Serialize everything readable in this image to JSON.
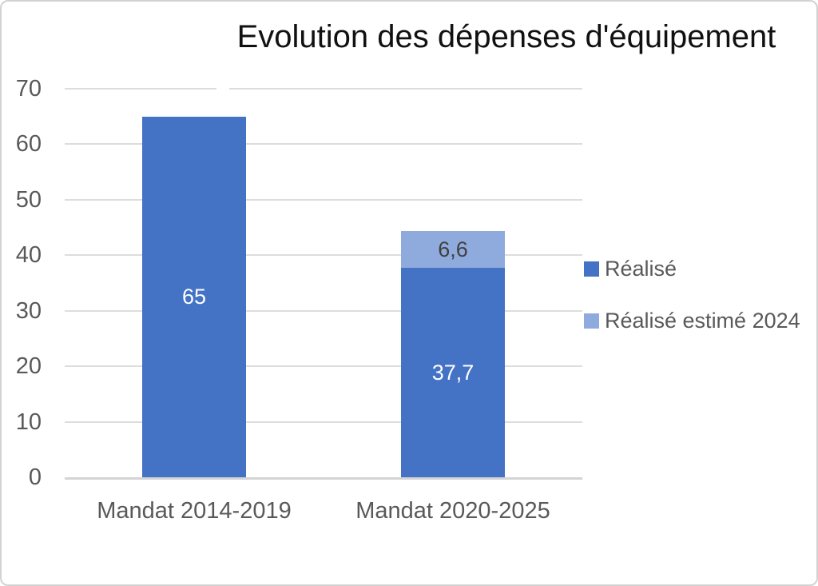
{
  "chart_data": {
    "type": "bar",
    "stacked": true,
    "title": "Evolution des dépenses d'équipement",
    "categories": [
      "Mandat 2014-2019",
      "Mandat 2020-2025"
    ],
    "series": [
      {
        "name": "Réalisé",
        "color": "#4472C4",
        "values": [
          65,
          37.7
        ],
        "labels": [
          "65",
          "37,7"
        ],
        "label_color": "#FFFFFF"
      },
      {
        "name": "Réalisé estimé 2024",
        "color": "#8FAADC",
        "values": [
          null,
          6.6
        ],
        "labels": [
          "",
          "6,6"
        ],
        "label_color": "#404040"
      }
    ],
    "xlabel": "",
    "ylabel": "",
    "ylim": [
      0,
      70
    ],
    "ytick_step": 10,
    "yticks": [
      "0",
      "10",
      "20",
      "30",
      "40",
      "50",
      "60",
      "70"
    ],
    "grid": true,
    "legend_position": "right"
  },
  "colors": {
    "grid": "#DDDDDD",
    "axis": "#D4D4D4",
    "tick_text": "#595959",
    "title_text": "#111111",
    "frame_border": "#D2D2D2"
  }
}
